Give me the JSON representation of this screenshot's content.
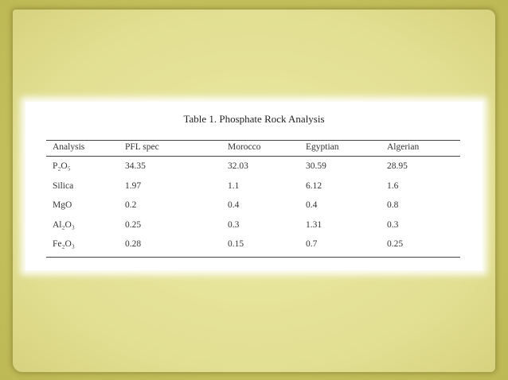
{
  "table": {
    "title": "Table 1. Phosphate Rock Analysis",
    "header": [
      "Analysis",
      "PFL spec",
      "Morocco",
      "Egyptian",
      "Algerian"
    ],
    "rows": [
      [
        "P₂O₅",
        "34.35",
        "32.03",
        "30.59",
        "28.95"
      ],
      [
        "Silica",
        "1.97",
        "1.1",
        "6.12",
        "1.6"
      ],
      [
        "MgO",
        "0.2",
        "0.4",
        "0.4",
        "0.8"
      ],
      [
        "Al₂O₃",
        "0.25",
        "0.3",
        "1.31",
        "0.3"
      ],
      [
        "Fe₂O₃",
        "0.28",
        "0.15",
        "0.7",
        "0.25"
      ]
    ]
  }
}
